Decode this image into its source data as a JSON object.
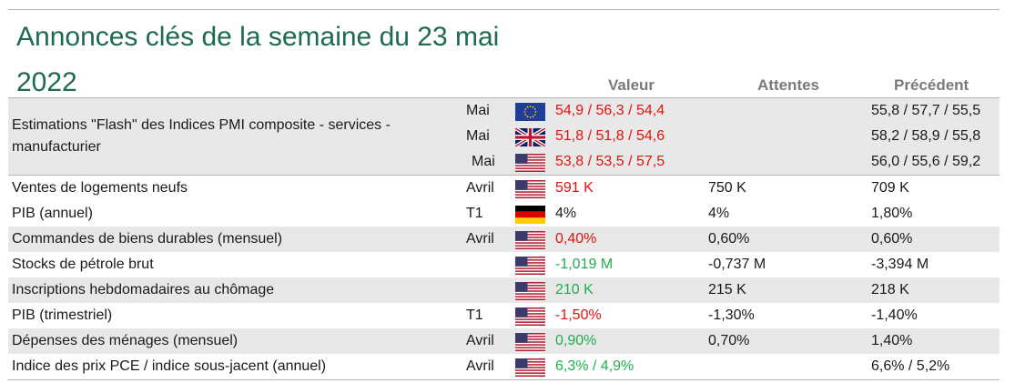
{
  "title": "Annonces clés de la semaine du 23 mai 2022",
  "headers": {
    "value": "Valeur",
    "expected": "Attentes",
    "previous": "Précédent"
  },
  "pmi": {
    "label": "Estimations \"Flash\" des Indices PMI composite - services - manufacturier",
    "rows": [
      {
        "period": "Mai",
        "flag": "eu-flag",
        "value": "54,9 / 56,3 / 54,4",
        "value_color": "red",
        "expected": "",
        "previous": "55,8 / 57,7 / 55,5"
      },
      {
        "period": "Mai",
        "flag": "uk-flag",
        "value": "51,8 / 51,8 / 54,6",
        "value_color": "red",
        "expected": "",
        "previous": "58,2 / 58,9 / 55,8"
      },
      {
        "period": "Mai",
        "flag": "us-flag",
        "value": "53,8 / 53,5 / 57,5",
        "value_color": "red",
        "expected": "",
        "previous": "56,0 / 55,6 / 59,2"
      }
    ]
  },
  "rows": [
    {
      "label": "Ventes de logements neufs",
      "period": "Avril",
      "flag": "us-flag",
      "value": "591 K",
      "value_color": "red",
      "expected": "750 K",
      "previous": "709 K"
    },
    {
      "label": "PIB (annuel)",
      "period": "T1",
      "flag": "de-flag",
      "value": "4%",
      "value_color": "black",
      "expected": "4%",
      "previous": "1,80%"
    },
    {
      "label": "Commandes de biens durables (mensuel)",
      "period": "Avril",
      "flag": "us-flag",
      "value": "0,40%",
      "value_color": "red",
      "expected": "0,60%",
      "previous": "0,60%"
    },
    {
      "label": "Stocks de pétrole brut",
      "period": "",
      "flag": "us-flag",
      "value": "-1,019 M",
      "value_color": "green",
      "expected": "-0,737 M",
      "previous": "-3,394 M"
    },
    {
      "label": "Inscriptions hebdomadaires au chômage",
      "period": "",
      "flag": "us-flag",
      "value": "210 K",
      "value_color": "green",
      "expected": "215 K",
      "previous": "218 K"
    },
    {
      "label": "PIB (trimestriel)",
      "period": "T1",
      "flag": "us-flag",
      "value": "-1,50%",
      "value_color": "red",
      "expected": "-1,30%",
      "previous": "-1,40%"
    },
    {
      "label": "Dépenses des ménages (mensuel)",
      "period": "Avril",
      "flag": "us-flag",
      "value": "0,90%",
      "value_color": "green",
      "expected": "0,70%",
      "previous": "1,40%"
    },
    {
      "label": "Indice des prix PCE / indice sous-jacent (annuel)",
      "period": "Avril",
      "flag": "us-flag",
      "value": "6,3% / 4,9%",
      "value_color": "green",
      "expected": "",
      "previous": "6,6% / 5,2%"
    }
  ],
  "colors": {
    "title": "#1e6a4d",
    "red": "#e3120b",
    "green": "#1fae4c",
    "header": "#7a7a7a",
    "shade": "#e8e8e8"
  }
}
